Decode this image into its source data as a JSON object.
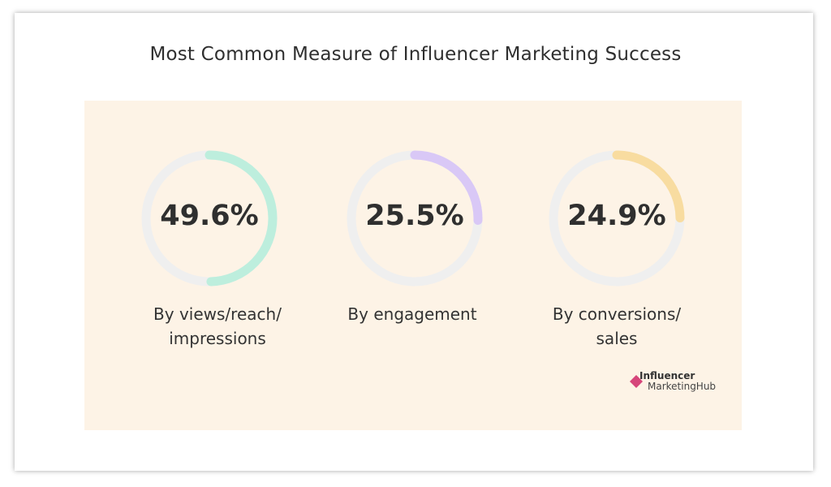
{
  "title": "Most Common Measure of Influencer Marketing Success",
  "chart_data": [
    {
      "type": "pie",
      "value": 49.6,
      "label_text": "49.6%",
      "category_lines": [
        "By views/reach/",
        "impressions"
      ],
      "color": "#bdeedd"
    },
    {
      "type": "pie",
      "value": 25.5,
      "label_text": "25.5%",
      "category_lines": [
        "By engagement"
      ],
      "color": "#d9c8f6"
    },
    {
      "type": "pie",
      "value": 24.9,
      "label_text": "24.9%",
      "category_lines": [
        "By conversions/",
        "sales"
      ],
      "color": "#f8dca0"
    }
  ],
  "colors": {
    "track": "#efefef",
    "panel": "#fdf3e6",
    "logo_mark": "#d6457a"
  },
  "logo": {
    "line1": "Influencer",
    "line2": "MarketingHub"
  }
}
